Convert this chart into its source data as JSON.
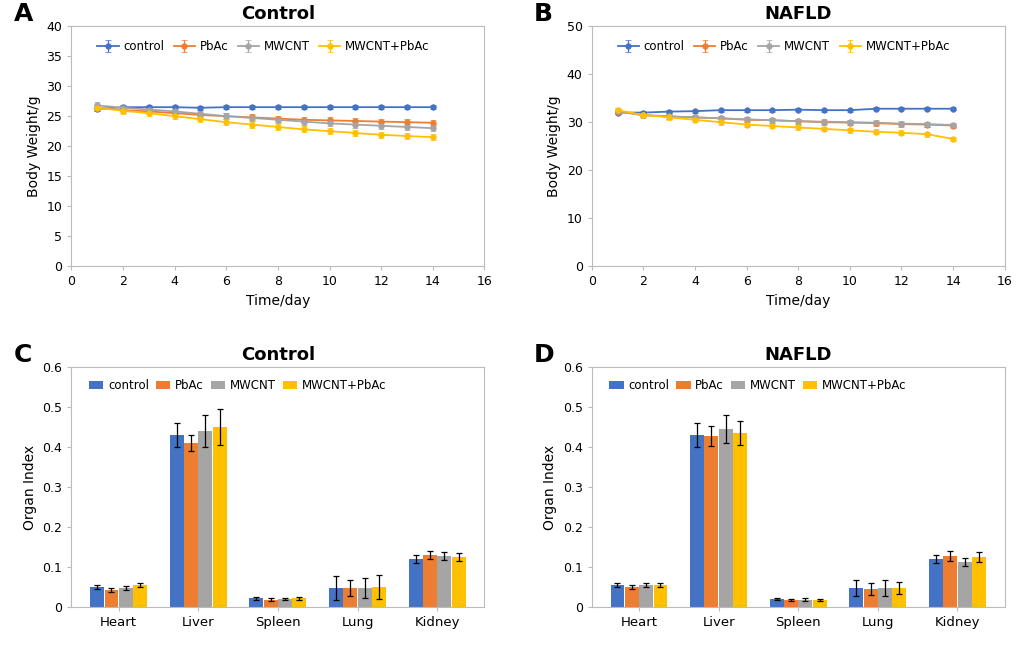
{
  "panel_A_title": "Control",
  "panel_B_title": "NAFLD",
  "panel_C_title": "Control",
  "panel_D_title": "NAFLD",
  "line_labels": [
    "control",
    "PbAc",
    "MWCNT",
    "MWCNT+PbAc"
  ],
  "line_colors": [
    "#4472C4",
    "#ED7D31",
    "#A5A5A5",
    "#FFC000"
  ],
  "days": [
    1,
    2,
    3,
    4,
    5,
    6,
    7,
    8,
    9,
    10,
    11,
    12,
    13,
    14
  ],
  "panelA_y": {
    "control": [
      26.2,
      26.5,
      26.5,
      26.5,
      26.4,
      26.5,
      26.5,
      26.5,
      26.5,
      26.5,
      26.5,
      26.5,
      26.5,
      26.5
    ],
    "PbAc": [
      26.4,
      26.0,
      25.8,
      25.5,
      25.2,
      25.0,
      24.8,
      24.6,
      24.4,
      24.3,
      24.2,
      24.1,
      24.0,
      23.9
    ],
    "MWCNT": [
      26.8,
      26.4,
      26.1,
      25.8,
      25.4,
      25.0,
      24.7,
      24.4,
      24.1,
      23.8,
      23.6,
      23.4,
      23.2,
      23.0
    ],
    "MWCNT+PbAc": [
      26.4,
      25.9,
      25.5,
      25.0,
      24.5,
      24.0,
      23.6,
      23.2,
      22.8,
      22.5,
      22.2,
      21.9,
      21.7,
      21.5
    ]
  },
  "panelA_err": {
    "control": [
      0.3,
      0.3,
      0.3,
      0.3,
      0.3,
      0.3,
      0.3,
      0.3,
      0.3,
      0.3,
      0.3,
      0.3,
      0.3,
      0.3
    ],
    "PbAc": [
      0.5,
      0.5,
      0.5,
      0.5,
      0.5,
      0.5,
      0.5,
      0.5,
      0.5,
      0.5,
      0.5,
      0.5,
      0.5,
      0.5
    ],
    "MWCNT": [
      0.5,
      0.5,
      0.5,
      0.5,
      0.5,
      0.5,
      0.5,
      0.5,
      0.5,
      0.5,
      0.5,
      0.5,
      0.5,
      0.5
    ],
    "MWCNT+PbAc": [
      0.5,
      0.5,
      0.5,
      0.5,
      0.5,
      0.5,
      0.5,
      0.5,
      0.5,
      0.5,
      0.5,
      0.5,
      0.5,
      0.5
    ]
  },
  "panelB_y": {
    "control": [
      32.0,
      32.0,
      32.2,
      32.3,
      32.5,
      32.5,
      32.5,
      32.6,
      32.5,
      32.5,
      32.8,
      32.8,
      32.8,
      32.8
    ],
    "PbAc": [
      32.2,
      31.5,
      31.2,
      31.0,
      30.8,
      30.5,
      30.4,
      30.2,
      30.0,
      29.9,
      29.8,
      29.6,
      29.5,
      29.3
    ],
    "MWCNT": [
      32.3,
      31.4,
      31.2,
      31.0,
      30.8,
      30.6,
      30.4,
      30.2,
      30.1,
      30.0,
      29.9,
      29.7,
      29.6,
      29.4
    ],
    "MWCNT+PbAc": [
      32.5,
      31.5,
      31.0,
      30.5,
      30.0,
      29.5,
      29.2,
      28.9,
      28.6,
      28.3,
      28.0,
      27.8,
      27.5,
      26.5
    ]
  },
  "panelB_err": {
    "control": [
      0.3,
      0.3,
      0.3,
      0.3,
      0.3,
      0.3,
      0.3,
      0.3,
      0.3,
      0.3,
      0.3,
      0.3,
      0.3,
      0.3
    ],
    "PbAc": [
      0.5,
      0.5,
      0.5,
      0.5,
      0.5,
      0.5,
      0.5,
      0.5,
      0.5,
      0.5,
      0.5,
      0.5,
      0.5,
      0.5
    ],
    "MWCNT": [
      0.5,
      0.5,
      0.5,
      0.5,
      0.5,
      0.5,
      0.5,
      0.5,
      0.5,
      0.5,
      0.5,
      0.5,
      0.5,
      0.5
    ],
    "MWCNT+PbAc": [
      0.5,
      0.5,
      0.5,
      0.5,
      0.5,
      0.5,
      0.5,
      0.5,
      0.5,
      0.5,
      0.5,
      0.5,
      0.5,
      0.5
    ]
  },
  "bar_colors": [
    "#4472C4",
    "#ED7D31",
    "#A5A5A5",
    "#FFC000"
  ],
  "organs": [
    "Heart",
    "Liver",
    "Spleen",
    "Lung",
    "Kidney"
  ],
  "panelC_vals": {
    "control": [
      0.05,
      0.43,
      0.022,
      0.048,
      0.12
    ],
    "PbAc": [
      0.042,
      0.41,
      0.019,
      0.048,
      0.13
    ],
    "MWCNT": [
      0.048,
      0.44,
      0.02,
      0.048,
      0.128
    ],
    "MWCNT+PbAc": [
      0.055,
      0.45,
      0.022,
      0.05,
      0.125
    ]
  },
  "panelC_err": {
    "control": [
      0.005,
      0.03,
      0.003,
      0.03,
      0.01
    ],
    "PbAc": [
      0.005,
      0.02,
      0.003,
      0.02,
      0.01
    ],
    "MWCNT": [
      0.005,
      0.04,
      0.003,
      0.025,
      0.01
    ],
    "MWCNT+PbAc": [
      0.005,
      0.045,
      0.003,
      0.03,
      0.01
    ]
  },
  "panelD_vals": {
    "control": [
      0.055,
      0.43,
      0.02,
      0.048,
      0.12
    ],
    "PbAc": [
      0.05,
      0.428,
      0.018,
      0.045,
      0.128
    ],
    "MWCNT": [
      0.055,
      0.445,
      0.019,
      0.048,
      0.113
    ],
    "MWCNT+PbAc": [
      0.055,
      0.435,
      0.018,
      0.048,
      0.125
    ]
  },
  "panelD_err": {
    "control": [
      0.005,
      0.03,
      0.003,
      0.02,
      0.01
    ],
    "PbAc": [
      0.005,
      0.025,
      0.003,
      0.015,
      0.012
    ],
    "MWCNT": [
      0.005,
      0.035,
      0.003,
      0.02,
      0.01
    ],
    "MWCNT+PbAc": [
      0.005,
      0.03,
      0.003,
      0.015,
      0.012
    ]
  },
  "ylabel_line": "Body Weight/g",
  "xlabel_line": "Time/day",
  "ylabel_bar": "Organ Index",
  "xlim_line": [
    0,
    16
  ],
  "ylim_A": [
    0,
    40
  ],
  "ylim_B": [
    0,
    50
  ],
  "ylim_bar": [
    0,
    0.6
  ],
  "bg_color": "#FFFFFF",
  "plot_bg": "#FFFFFF",
  "outer_box_color": "#CCCCCC"
}
